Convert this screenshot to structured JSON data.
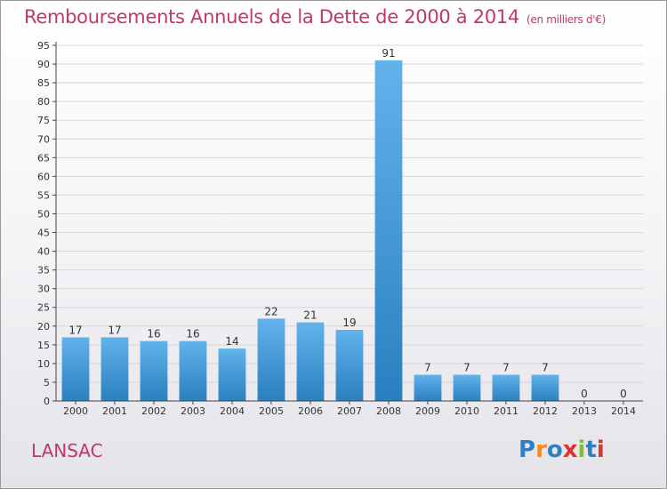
{
  "header": {
    "title": "Remboursements Annuels de la Dette de 2000 à 2014",
    "unit": "(en milliers d'€)"
  },
  "footer": {
    "commune": "LANSAC",
    "logo_text": "Proxiti",
    "logo_colors": [
      "#2f7fc4",
      "#f28c1f",
      "#2f7fc4",
      "#e0312f",
      "#7fbf3a",
      "#2f7fc4",
      "#e0312f"
    ]
  },
  "colors": {
    "bar_top": "#62b3ea",
    "bar_bottom": "#2a7fc0",
    "title": "#c0386a",
    "grid": "#d6d6d6"
  },
  "chart_data": {
    "type": "bar",
    "title": "Remboursements Annuels de la Dette de 2000 à 2014",
    "subtitle": "(en milliers d'€)",
    "xlabel": "",
    "ylabel": "",
    "categories": [
      "2000",
      "2001",
      "2002",
      "2003",
      "2004",
      "2005",
      "2006",
      "2007",
      "2008",
      "2009",
      "2010",
      "2011",
      "2012",
      "2013",
      "2014"
    ],
    "values": [
      17,
      17,
      16,
      16,
      14,
      22,
      21,
      19,
      91,
      7,
      7,
      7,
      7,
      0,
      0
    ],
    "ylim": [
      0,
      95
    ],
    "yticks": [
      0,
      5,
      10,
      15,
      20,
      25,
      30,
      35,
      40,
      45,
      50,
      55,
      60,
      65,
      70,
      75,
      80,
      85,
      90,
      95
    ],
    "grid": true,
    "data_labels": true
  }
}
